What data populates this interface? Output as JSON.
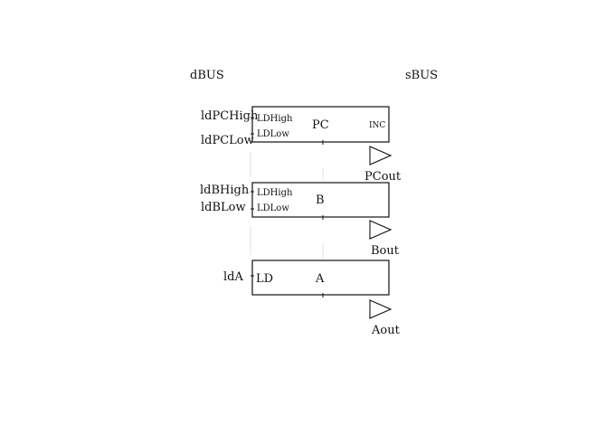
{
  "buses": {
    "dbus": "dBUS",
    "sbus": "sBUS"
  },
  "registers": [
    {
      "name": "PC",
      "inputs": [
        "LDHigh",
        "LDLow"
      ],
      "extra": "INC",
      "signals": [
        "ldPCHigh",
        "ldPCLow"
      ],
      "output": "PCout"
    },
    {
      "name": "B",
      "inputs": [
        "LDHigh",
        "LDLow"
      ],
      "extra": "",
      "signals": [
        "ldBHigh",
        "ldBLow"
      ],
      "output": "Bout"
    },
    {
      "name": "A",
      "inputs": [
        "LD"
      ],
      "extra": "",
      "signals": [
        "ldA"
      ],
      "output": "Aout"
    }
  ]
}
